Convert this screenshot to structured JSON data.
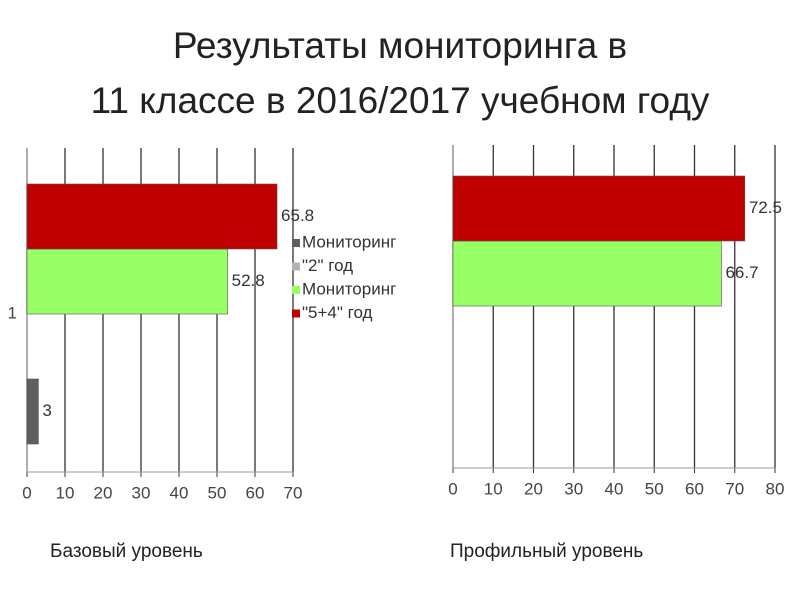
{
  "title": [
    "Результаты мониторинга в",
    "11 классе в 2016/2017 учебном году"
  ],
  "chart_data": [
    {
      "type": "bar",
      "orientation": "horizontal",
      "subtitle": "Базовый уровень",
      "categories": [
        "1"
      ],
      "series": [
        {
          "name": "Мониторинг",
          "color": "#5f5f5f",
          "values": [
            3
          ]
        },
        {
          "name": "\"2\" год",
          "color": "#b3b3b3",
          "values": [
            null
          ]
        },
        {
          "name": "Мониторинг",
          "color": "#99ff66",
          "values": [
            52.8
          ]
        },
        {
          "name": "\"5+4\" год",
          "color": "#c00000",
          "values": [
            65.8
          ]
        }
      ],
      "xlim": [
        0,
        70
      ],
      "xticks": [
        0,
        10,
        20,
        30,
        40,
        50,
        60,
        70
      ],
      "grid": true,
      "legend": "right"
    },
    {
      "type": "bar",
      "orientation": "horizontal",
      "subtitle": "Профильный уровень",
      "categories": [
        null
      ],
      "series": [
        {
          "color": "#99ff66",
          "values": [
            66.7
          ]
        },
        {
          "color": "#c00000",
          "values": [
            72.5
          ]
        }
      ],
      "xlim": [
        0,
        80
      ],
      "xticks": [
        0,
        10,
        20,
        30,
        40,
        50,
        60,
        70,
        80
      ],
      "grid": true
    }
  ]
}
